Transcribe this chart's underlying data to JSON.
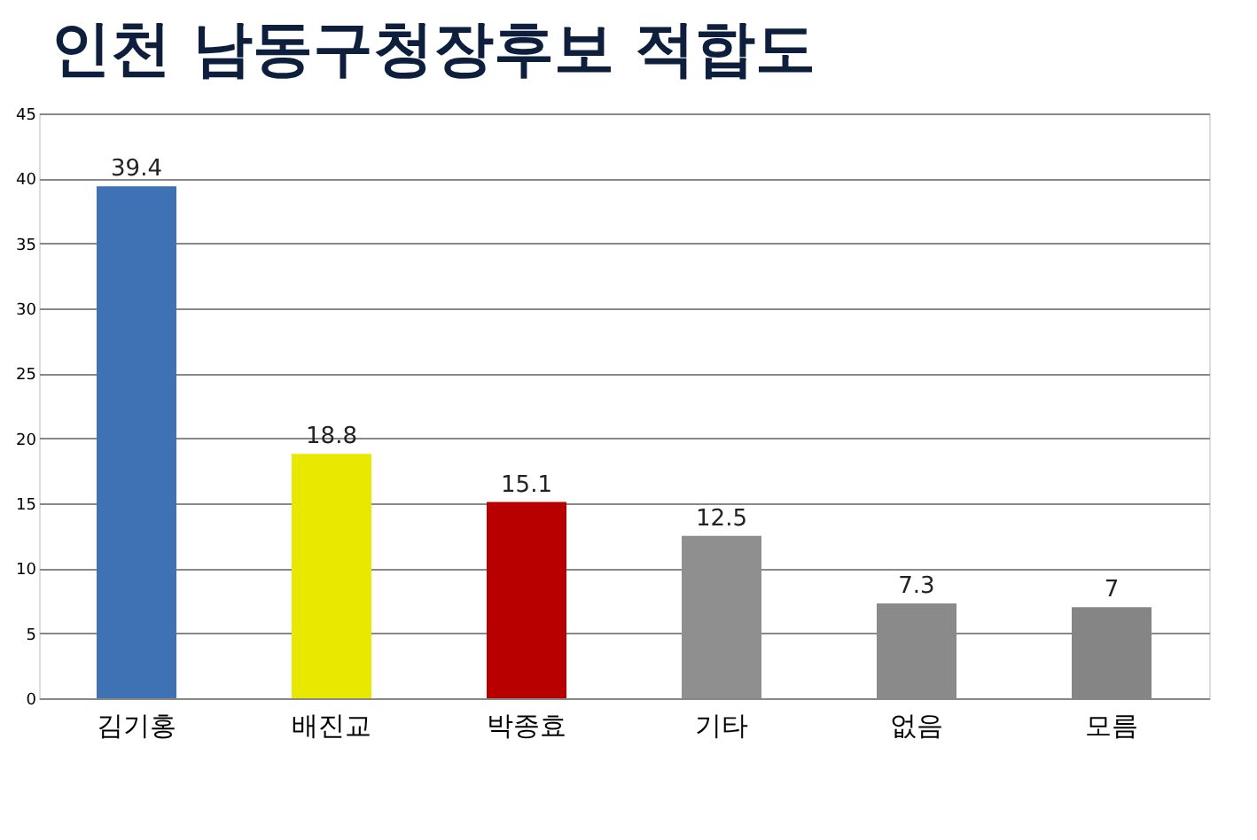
{
  "chart_data": {
    "type": "bar",
    "title": "인천 남동구청장후보 적합도",
    "categories": [
      "김기홍",
      "배진교",
      "박종효",
      "기타",
      "없음",
      "모름"
    ],
    "values": [
      39.4,
      18.8,
      15.1,
      12.5,
      7.3,
      7
    ],
    "colors": [
      "#3f72b5",
      "#e8e800",
      "#b80000",
      "#8f8f8f",
      "#8a8a8a",
      "#858585"
    ],
    "ylim": [
      0,
      45
    ],
    "yticks": [
      0,
      5,
      10,
      15,
      20,
      25,
      30,
      35,
      40,
      45
    ],
    "grid": "y",
    "data_labels": true
  }
}
